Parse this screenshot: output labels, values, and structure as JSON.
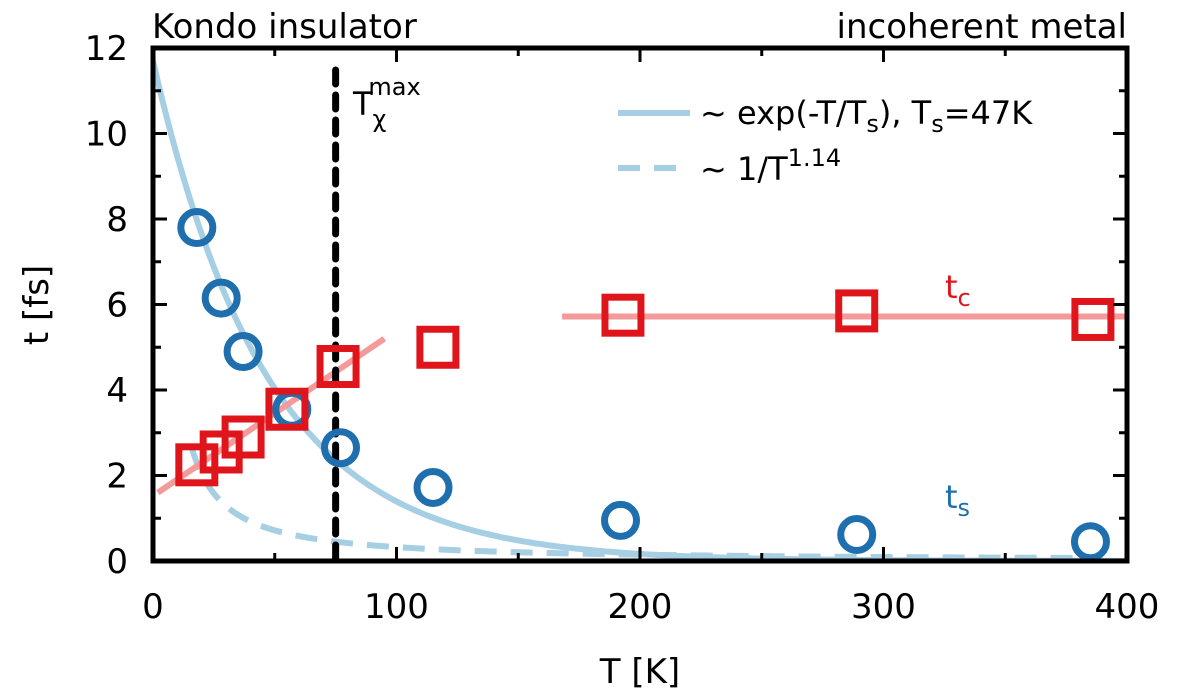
{
  "chart_data": {
    "type": "scatter",
    "xlabel": "T [K]",
    "ylabel": "t [fs]",
    "xlim": [
      0,
      400
    ],
    "ylim": [
      0,
      12
    ],
    "x_ticks": [
      0,
      100,
      200,
      300,
      400
    ],
    "y_ticks": [
      0,
      2,
      4,
      6,
      8,
      10,
      12
    ],
    "x_tick_labels": [
      "0",
      "100",
      "200",
      "300",
      "400"
    ],
    "y_tick_labels": [
      "0",
      "2",
      "4",
      "6",
      "8",
      "10",
      "12"
    ],
    "grid": false,
    "legend_position": "top-right",
    "region_labels": {
      "left": "Kondo insulator",
      "right": "incoherent metal"
    },
    "vline": {
      "x": 75,
      "label_base": "T",
      "label_sub": "χ",
      "label_sup": "max"
    },
    "colors": {
      "ts": "#1f6fae",
      "tc": "#e0151b",
      "fit_ts": "#a6cfe3",
      "fit_tc": "#f59a9a",
      "vline": "#000000"
    },
    "series": [
      {
        "name": "t_s",
        "label_base": "t",
        "label_sub": "s",
        "marker": "circle",
        "x": [
          18,
          28,
          37,
          57,
          77,
          115,
          192,
          289,
          385
        ],
        "y": [
          7.8,
          6.15,
          4.9,
          3.55,
          2.65,
          1.72,
          0.95,
          0.62,
          0.45
        ]
      },
      {
        "name": "t_c",
        "label_base": "t",
        "label_sub": "c",
        "marker": "square",
        "x": [
          18,
          28,
          37,
          55,
          76,
          117,
          193,
          289,
          386
        ],
        "y": [
          2.25,
          2.55,
          2.9,
          3.55,
          4.55,
          5.0,
          5.75,
          5.85,
          5.65
        ]
      }
    ],
    "fits": [
      {
        "name": "exp_fit",
        "legend_base": "~ exp(-T/T",
        "legend_sub": "s",
        "legend_mid": "), T",
        "legend_sub2": "s",
        "legend_end": "=47K",
        "style": "solid",
        "y0": 11.7,
        "Ts": 47,
        "x_range": [
          0,
          400
        ]
      },
      {
        "name": "power_fit",
        "legend_base": "~ 1/T",
        "legend_sup": "1.14",
        "style": "dashed",
        "A": 62,
        "exponent": 1.14,
        "x_range": [
          16,
          390
        ]
      },
      {
        "name": "tc_low",
        "style": "solid",
        "x": [
          2,
          95
        ],
        "y": [
          1.6,
          5.2
        ]
      },
      {
        "name": "tc_high",
        "style": "solid",
        "x": [
          168,
          400
        ],
        "y": [
          5.72,
          5.72
        ]
      }
    ]
  }
}
